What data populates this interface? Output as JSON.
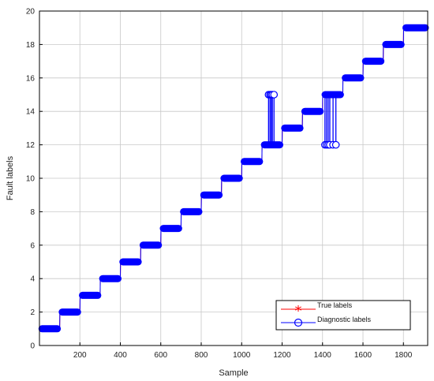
{
  "chart_data": {
    "type": "line",
    "title": "",
    "xlabel": "Sample",
    "ylabel": "Fault labels",
    "xlim": [
      0,
      1920
    ],
    "ylim": [
      0,
      20
    ],
    "x_ticks": [
      200,
      400,
      600,
      800,
      1000,
      1200,
      1400,
      1600,
      1800
    ],
    "y_ticks": [
      0,
      2,
      4,
      6,
      8,
      10,
      12,
      14,
      16,
      18,
      20
    ],
    "grid": true,
    "legend_position": "bottom-right",
    "series": [
      {
        "name": "True labels",
        "color": "#ff0000",
        "marker": "asterisk",
        "segments": [
          {
            "x": [
              1,
              100
            ],
            "y": 1
          },
          {
            "x": [
              101,
              200
            ],
            "y": 2
          },
          {
            "x": [
              201,
              300
            ],
            "y": 3
          },
          {
            "x": [
              301,
              400
            ],
            "y": 4
          },
          {
            "x": [
              401,
              500
            ],
            "y": 5
          },
          {
            "x": [
              501,
              600
            ],
            "y": 6
          },
          {
            "x": [
              601,
              700
            ],
            "y": 7
          },
          {
            "x": [
              701,
              800
            ],
            "y": 8
          },
          {
            "x": [
              801,
              900
            ],
            "y": 9
          },
          {
            "x": [
              901,
              1000
            ],
            "y": 10
          },
          {
            "x": [
              1001,
              1100
            ],
            "y": 11
          },
          {
            "x": [
              1101,
              1200
            ],
            "y": 12
          },
          {
            "x": [
              1201,
              1300
            ],
            "y": 13
          },
          {
            "x": [
              1301,
              1400
            ],
            "y": 14
          },
          {
            "x": [
              1401,
              1500
            ],
            "y": 15
          },
          {
            "x": [
              1501,
              1600
            ],
            "y": 16
          },
          {
            "x": [
              1601,
              1700
            ],
            "y": 17
          },
          {
            "x": [
              1701,
              1800
            ],
            "y": 18
          },
          {
            "x": [
              1801,
              1920
            ],
            "y": 19
          }
        ]
      },
      {
        "name": "Diagnostic labels",
        "color": "#0000ff",
        "marker": "circle",
        "segments": [
          {
            "x": [
              1,
              100
            ],
            "y": 1
          },
          {
            "x": [
              101,
              200
            ],
            "y": 2
          },
          {
            "x": [
              201,
              300
            ],
            "y": 3
          },
          {
            "x": [
              301,
              400
            ],
            "y": 4
          },
          {
            "x": [
              401,
              500
            ],
            "y": 5
          },
          {
            "x": [
              501,
              600
            ],
            "y": 6
          },
          {
            "x": [
              601,
              700
            ],
            "y": 7
          },
          {
            "x": [
              701,
              800
            ],
            "y": 8
          },
          {
            "x": [
              801,
              900
            ],
            "y": 9
          },
          {
            "x": [
              901,
              1000
            ],
            "y": 10
          },
          {
            "x": [
              1001,
              1100
            ],
            "y": 11
          },
          {
            "x": [
              1101,
              1200
            ],
            "y": 12
          },
          {
            "x": [
              1201,
              1300
            ],
            "y": 13
          },
          {
            "x": [
              1301,
              1400
            ],
            "y": 14
          },
          {
            "x": [
              1401,
              1500
            ],
            "y": 15
          },
          {
            "x": [
              1501,
              1600
            ],
            "y": 16
          },
          {
            "x": [
              1601,
              1700
            ],
            "y": 17
          },
          {
            "x": [
              1701,
              1800
            ],
            "y": 18
          },
          {
            "x": [
              1801,
              1920
            ],
            "y": 19
          }
        ],
        "misclassified": [
          {
            "x": 1133,
            "y": 15
          },
          {
            "x": 1140,
            "y": 15
          },
          {
            "x": 1146,
            "y": 15
          },
          {
            "x": 1152,
            "y": 15
          },
          {
            "x": 1160,
            "y": 15
          },
          {
            "x": 1412,
            "y": 12
          },
          {
            "x": 1420,
            "y": 12
          },
          {
            "x": 1428,
            "y": 12
          },
          {
            "x": 1436,
            "y": 12
          },
          {
            "x": 1452,
            "y": 12
          },
          {
            "x": 1466,
            "y": 12
          }
        ]
      }
    ]
  }
}
